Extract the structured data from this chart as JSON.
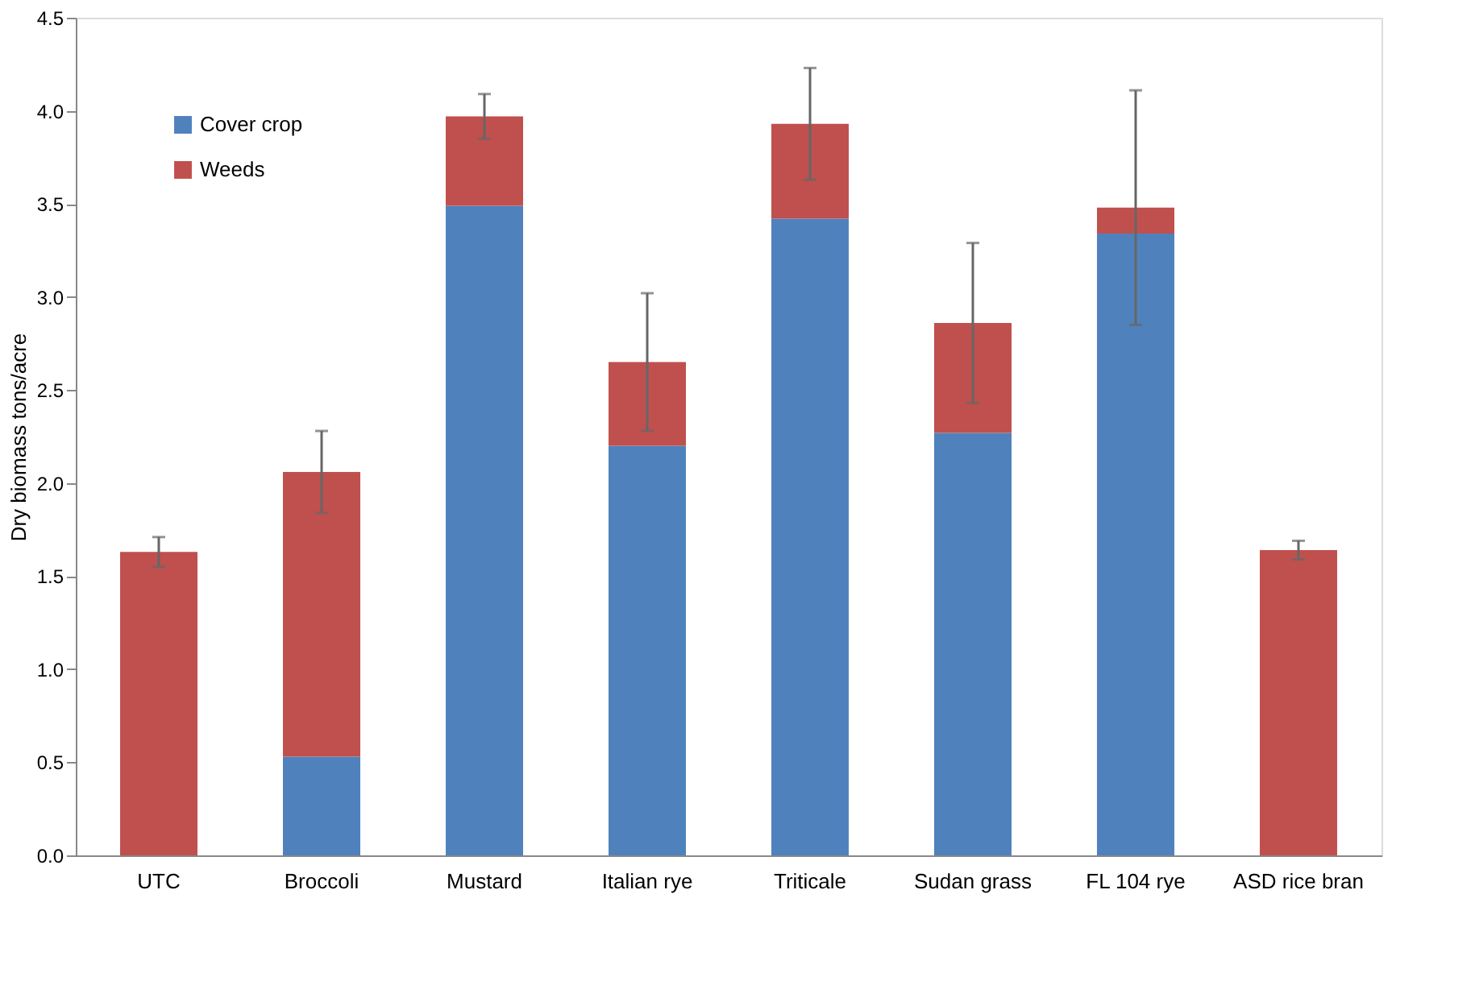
{
  "chart_data": {
    "type": "bar",
    "stacked": true,
    "ylabel": "Dry biomass tons/acre",
    "categories": [
      "UTC",
      "Broccoli",
      "Mustard",
      "Italian rye",
      "Triticale",
      "Sudan grass",
      "FL 104 rye",
      "ASD rice bran"
    ],
    "series": [
      {
        "name": "Cover crop",
        "color": "#4f81bd",
        "values": [
          0,
          0.53,
          3.49,
          2.2,
          3.42,
          2.27,
          3.34,
          0
        ]
      },
      {
        "name": "Weeds",
        "color": "#c0504d",
        "values": [
          1.63,
          1.53,
          0.48,
          0.45,
          0.51,
          0.59,
          0.14,
          1.64
        ],
        "errors": [
          0.08,
          0.22,
          0.12,
          0.37,
          0.3,
          0.43,
          0.63,
          0.05
        ]
      }
    ],
    "ylim": [
      0,
      4.5
    ],
    "yticks": [
      {
        "value": 0,
        "label": "0.0"
      },
      0.5,
      {
        "value": 1,
        "label": "1.0"
      },
      1.5,
      {
        "value": 2,
        "label": "2.0"
      },
      2.5,
      {
        "value": 3,
        "label": "3.0"
      },
      3.5,
      {
        "value": 4,
        "label": "4.0"
      },
      4.5
    ],
    "grid": false,
    "legend": "top left"
  }
}
